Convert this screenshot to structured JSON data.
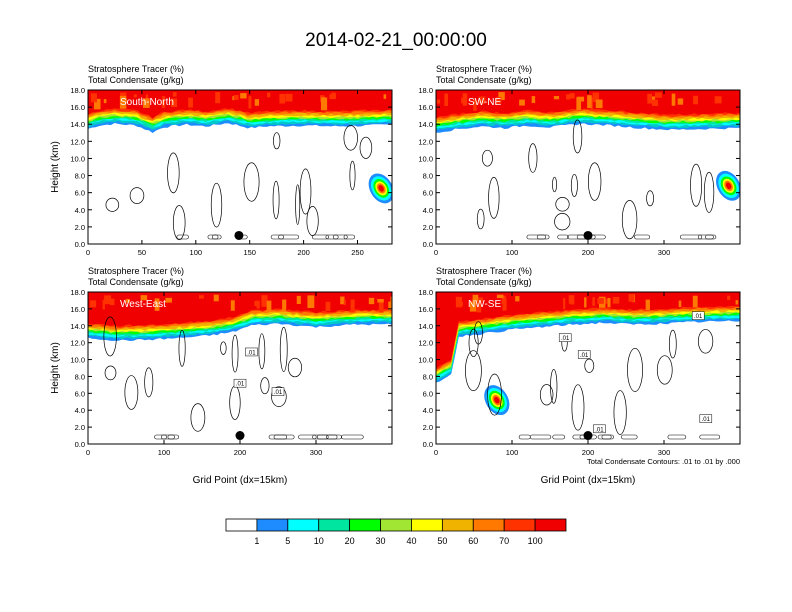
{
  "title": "2014-02-21_00:00:00",
  "colors": {
    "levels": [
      "#ffffff",
      "#1e8cff",
      "#00c8c8",
      "#00ffff",
      "#00e6a0",
      "#00ff00",
      "#a0e632",
      "#e6dc32",
      "#ffff00",
      "#f0b400",
      "#ff7800",
      "#ff3200",
      "#f00000"
    ],
    "contour": "#000000"
  },
  "colorbar": {
    "labels": [
      "1",
      "5",
      "10",
      "20",
      "30",
      "40",
      "50",
      "60",
      "70",
      "100"
    ]
  },
  "chart_data": [
    {
      "type": "heatmap",
      "panel_label": "South-North",
      "subtitle_line1": "Stratosphere Tracer   (%)",
      "subtitle_line2": "Total Condensate   (g/kg)",
      "ylabel": "Height (km)",
      "xlabel": "",
      "xlim": [
        0,
        282
      ],
      "ylim": [
        0,
        18
      ],
      "xticks": [
        0,
        50,
        100,
        150,
        200,
        250
      ],
      "yticks": [
        "0.0",
        "2.0",
        "4.0",
        "6.0",
        "8.0",
        "10.0",
        "12.0",
        "14.0",
        "16.0",
        "18.0"
      ],
      "marker_x": 140,
      "marker_y": 1.0,
      "tropopause": [
        [
          0,
          15.2
        ],
        [
          10,
          15.6
        ],
        [
          25,
          15.8
        ],
        [
          45,
          15.6
        ],
        [
          60,
          14.8
        ],
        [
          70,
          15.4
        ],
        [
          90,
          15.7
        ],
        [
          110,
          15.5
        ],
        [
          130,
          15.9
        ],
        [
          150,
          15.3
        ],
        [
          165,
          15.5
        ],
        [
          200,
          15.6
        ],
        [
          230,
          15.5
        ],
        [
          260,
          15.6
        ],
        [
          282,
          15.7
        ]
      ],
      "intrusion": {
        "x": 272,
        "y": 6.5
      }
    },
    {
      "type": "heatmap",
      "panel_label": "SW-NE",
      "subtitle_line1": "Stratosphere Tracer   (%)",
      "subtitle_line2": "Total Condensate   (g/kg)",
      "ylabel": "",
      "xlabel": "",
      "xlim": [
        0,
        400
      ],
      "ylim": [
        0,
        18
      ],
      "xticks": [
        0,
        100,
        200,
        300
      ],
      "yticks": [
        "0.0",
        "2.0",
        "4.0",
        "6.0",
        "8.0",
        "10.0",
        "12.0",
        "14.0",
        "16.0",
        "18.0"
      ],
      "marker_x": 200,
      "marker_y": 1.0,
      "tropopause": [
        [
          0,
          14.8
        ],
        [
          30,
          15.2
        ],
        [
          60,
          15.5
        ],
        [
          90,
          15.3
        ],
        [
          120,
          15.6
        ],
        [
          150,
          15.4
        ],
        [
          190,
          15.8
        ],
        [
          230,
          15.6
        ],
        [
          270,
          15.3
        ],
        [
          310,
          15.1
        ],
        [
          350,
          15.2
        ],
        [
          400,
          15.3
        ]
      ],
      "intrusion": {
        "x": 385,
        "y": 6.8
      }
    },
    {
      "type": "heatmap",
      "panel_label": "West-East",
      "subtitle_line1": "Stratosphere Tracer   (%)",
      "subtitle_line2": "Total Condensate   (g/kg)",
      "ylabel": "Height (km)",
      "xlabel": "Grid Point (dx=15km)",
      "xlim": [
        0,
        400
      ],
      "ylim": [
        0,
        18
      ],
      "xticks": [
        0,
        100,
        200,
        300
      ],
      "yticks": [
        "0.0",
        "2.0",
        "4.0",
        "6.0",
        "8.0",
        "10.0",
        "12.0",
        "14.0",
        "16.0",
        "18.0"
      ],
      "marker_x": 200,
      "marker_y": 1.0,
      "tropopause": [
        [
          0,
          14.3
        ],
        [
          40,
          14.0
        ],
        [
          80,
          14.1
        ],
        [
          120,
          14.3
        ],
        [
          160,
          14.6
        ],
        [
          190,
          15.0
        ],
        [
          215,
          15.8
        ],
        [
          250,
          16.0
        ],
        [
          300,
          15.6
        ],
        [
          350,
          15.9
        ],
        [
          400,
          15.9
        ]
      ],
      "labels": [
        {
          "x": 215,
          "y": 10.9,
          "text": ".01"
        },
        {
          "x": 200,
          "y": 7.2,
          "text": ".01"
        },
        {
          "x": 250,
          "y": 6.2,
          "text": ".01"
        }
      ]
    },
    {
      "type": "heatmap",
      "panel_label": "NW-SE",
      "subtitle_line1": "Stratosphere Tracer   (%)",
      "subtitle_line2": "Total Condensate   (g/kg)",
      "ylabel": "",
      "xlabel": "Grid Point (dx=15km)",
      "xlim": [
        0,
        400
      ],
      "ylim": [
        0,
        18
      ],
      "xticks": [
        0,
        100,
        200,
        300
      ],
      "yticks": [
        "0.0",
        "2.0",
        "4.0",
        "6.0",
        "8.0",
        "10.0",
        "12.0",
        "14.0",
        "16.0",
        "18.0"
      ],
      "marker_x": 200,
      "marker_y": 1.0,
      "tropopause": [
        [
          0,
          9.0
        ],
        [
          20,
          10.0
        ],
        [
          30,
          14.5
        ],
        [
          60,
          14.8
        ],
        [
          100,
          15.3
        ],
        [
          140,
          15.6
        ],
        [
          180,
          15.9
        ],
        [
          220,
          16.1
        ],
        [
          260,
          15.9
        ],
        [
          300,
          16.0
        ],
        [
          340,
          16.2
        ],
        [
          400,
          16.3
        ]
      ],
      "intrusion": {
        "x": 80,
        "y": 5.2
      },
      "labels": [
        {
          "x": 170,
          "y": 12.6,
          "text": ".01"
        },
        {
          "x": 195,
          "y": 10.6,
          "text": ".01"
        },
        {
          "x": 345,
          "y": 15.2,
          "text": ".01"
        },
        {
          "x": 355,
          "y": 3.0,
          "text": ".01"
        },
        {
          "x": 215,
          "y": 1.8,
          "text": ".01"
        }
      ],
      "footnote": "Total Condensate Contours: .01 to .01 by .000"
    }
  ]
}
